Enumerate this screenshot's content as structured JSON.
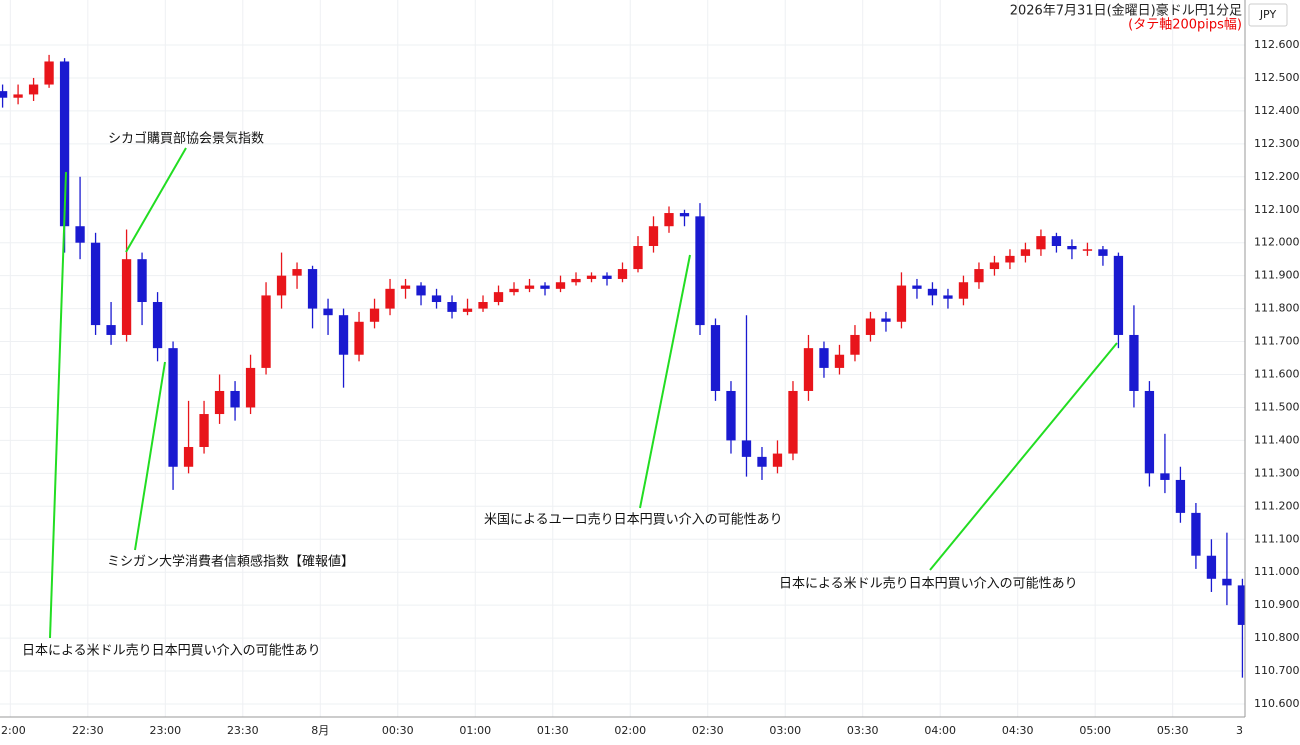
{
  "chart_data": {
    "type": "candlestick",
    "title": "2026年7月31日(金曜日)豪ドル円1分足",
    "subtitle": "(タテ軸200pips幅)",
    "currency": "JPY",
    "up_color": "#e8151b",
    "down_color": "#1a1ad0",
    "grid": true,
    "x": [
      -3,
      3,
      9,
      15,
      21,
      27,
      33,
      39,
      45,
      51,
      57,
      63,
      69,
      75,
      81,
      87,
      93,
      99,
      105,
      111,
      117,
      123,
      129,
      135,
      141,
      147,
      153,
      159,
      165,
      171,
      177,
      183,
      189,
      195,
      201,
      207,
      213,
      219,
      225,
      231,
      237,
      243,
      249,
      255,
      261,
      267,
      273,
      279,
      285,
      291,
      297,
      303,
      309,
      315,
      321,
      327,
      333,
      339,
      345,
      351,
      357,
      363,
      369,
      375,
      381,
      387,
      393,
      399,
      405,
      411,
      417,
      423,
      429,
      435,
      441,
      447,
      453,
      459,
      465,
      471,
      477
    ],
    "open": [
      112.46,
      112.44,
      112.45,
      112.48,
      112.55,
      112.05,
      112.0,
      111.75,
      111.72,
      111.95,
      111.82,
      111.68,
      111.32,
      111.38,
      111.48,
      111.55,
      111.5,
      111.62,
      111.84,
      111.9,
      111.92,
      111.8,
      111.78,
      111.66,
      111.76,
      111.8,
      111.86,
      111.87,
      111.84,
      111.82,
      111.79,
      111.8,
      111.82,
      111.85,
      111.86,
      111.87,
      111.86,
      111.88,
      111.89,
      111.9,
      111.89,
      111.92,
      111.99,
      112.05,
      112.09,
      112.08,
      111.75,
      111.55,
      111.4,
      111.35,
      111.32,
      111.36,
      111.55,
      111.68,
      111.62,
      111.66,
      111.72,
      111.77,
      111.76,
      111.87,
      111.86,
      111.84,
      111.83,
      111.88,
      111.92,
      111.94,
      111.96,
      111.98,
      112.02,
      111.99,
      111.98,
      111.98,
      111.96,
      111.72,
      111.55,
      111.3,
      111.28,
      111.18,
      111.05,
      110.98,
      110.96
    ],
    "high": [
      112.48,
      112.48,
      112.5,
      112.57,
      112.56,
      112.2,
      112.03,
      111.82,
      112.04,
      111.97,
      111.85,
      111.7,
      111.52,
      111.52,
      111.6,
      111.58,
      111.66,
      111.88,
      111.97,
      111.94,
      111.93,
      111.83,
      111.8,
      111.79,
      111.83,
      111.89,
      111.89,
      111.88,
      111.86,
      111.84,
      111.83,
      111.84,
      111.87,
      111.88,
      111.89,
      111.88,
      111.9,
      111.91,
      111.91,
      111.91,
      111.94,
      112.02,
      112.08,
      112.11,
      112.1,
      112.12,
      111.77,
      111.58,
      111.78,
      111.38,
      111.4,
      111.58,
      111.72,
      111.7,
      111.69,
      111.75,
      111.79,
      111.79,
      111.91,
      111.89,
      111.88,
      111.86,
      111.9,
      111.94,
      111.96,
      111.98,
      112.0,
      112.04,
      112.03,
      112.01,
      112.0,
      111.99,
      111.97,
      111.81,
      111.58,
      111.42,
      111.32,
      111.21,
      111.1,
      111.12,
      110.98
    ],
    "low": [
      112.41,
      112.42,
      112.43,
      112.47,
      111.97,
      111.95,
      111.72,
      111.69,
      111.7,
      111.75,
      111.64,
      111.25,
      111.3,
      111.36,
      111.45,
      111.46,
      111.48,
      111.6,
      111.8,
      111.86,
      111.74,
      111.72,
      111.56,
      111.64,
      111.74,
      111.78,
      111.83,
      111.81,
      111.8,
      111.77,
      111.78,
      111.79,
      111.81,
      111.84,
      111.85,
      111.84,
      111.85,
      111.87,
      111.88,
      111.87,
      111.88,
      111.91,
      111.97,
      112.03,
      112.05,
      111.72,
      111.52,
      111.36,
      111.29,
      111.28,
      111.3,
      111.34,
      111.52,
      111.59,
      111.6,
      111.64,
      111.7,
      111.73,
      111.74,
      111.83,
      111.81,
      111.8,
      111.81,
      111.86,
      111.9,
      111.92,
      111.94,
      111.96,
      111.97,
      111.95,
      111.96,
      111.93,
      111.68,
      111.5,
      111.26,
      111.24,
      111.15,
      111.01,
      110.94,
      110.9,
      110.68
    ],
    "close": [
      112.44,
      112.45,
      112.48,
      112.55,
      112.05,
      112.0,
      111.75,
      111.72,
      111.95,
      111.82,
      111.68,
      111.32,
      111.38,
      111.48,
      111.55,
      111.5,
      111.62,
      111.84,
      111.9,
      111.92,
      111.8,
      111.78,
      111.66,
      111.76,
      111.8,
      111.86,
      111.87,
      111.84,
      111.82,
      111.79,
      111.8,
      111.82,
      111.85,
      111.86,
      111.87,
      111.86,
      111.88,
      111.89,
      111.9,
      111.89,
      111.92,
      111.99,
      112.05,
      112.09,
      112.08,
      111.75,
      111.55,
      111.4,
      111.35,
      111.32,
      111.36,
      111.55,
      111.68,
      111.62,
      111.66,
      111.72,
      111.77,
      111.76,
      111.87,
      111.86,
      111.84,
      111.83,
      111.88,
      111.92,
      111.94,
      111.96,
      111.98,
      112.02,
      111.99,
      111.98,
      111.98,
      111.96,
      111.72,
      111.55,
      111.3,
      111.28,
      111.18,
      111.05,
      110.98,
      110.96,
      110.84
    ],
    "xlim": [
      -4,
      478
    ],
    "xticks": [
      {
        "value": 0,
        "label": "2:00"
      },
      {
        "value": 30,
        "label": "22:30"
      },
      {
        "value": 60,
        "label": "23:00"
      },
      {
        "value": 90,
        "label": "23:30"
      },
      {
        "value": 120,
        "label": "8月"
      },
      {
        "value": 150,
        "label": "00:30"
      },
      {
        "value": 180,
        "label": "01:00"
      },
      {
        "value": 210,
        "label": "01:30"
      },
      {
        "value": 240,
        "label": "02:00"
      },
      {
        "value": 270,
        "label": "02:30"
      },
      {
        "value": 300,
        "label": "03:00"
      },
      {
        "value": 330,
        "label": "03:30"
      },
      {
        "value": 360,
        "label": "04:00"
      },
      {
        "value": 390,
        "label": "04:30"
      },
      {
        "value": 420,
        "label": "05:00"
      },
      {
        "value": 450,
        "label": "05:30"
      },
      {
        "value": 478,
        "label": "3"
      }
    ],
    "ylim": [
      110.6,
      112.6
    ],
    "yticks": [
      {
        "value": 110.6,
        "label": "110.600"
      },
      {
        "value": 110.7,
        "label": "110.700"
      },
      {
        "value": 110.8,
        "label": "110.800"
      },
      {
        "value": 110.9,
        "label": "110.900"
      },
      {
        "value": 111.0,
        "label": "111.000"
      },
      {
        "value": 111.1,
        "label": "111.100"
      },
      {
        "value": 111.2,
        "label": "111.200"
      },
      {
        "value": 111.3,
        "label": "111.300"
      },
      {
        "value": 111.4,
        "label": "111.400"
      },
      {
        "value": 111.5,
        "label": "111.500"
      },
      {
        "value": 111.6,
        "label": "111.600"
      },
      {
        "value": 111.7,
        "label": "111.700"
      },
      {
        "value": 111.8,
        "label": "111.800"
      },
      {
        "value": 111.9,
        "label": "111.900"
      },
      {
        "value": 112.0,
        "label": "112.000"
      },
      {
        "value": 112.1,
        "label": "112.100"
      },
      {
        "value": 112.2,
        "label": "112.200"
      },
      {
        "value": 112.3,
        "label": "112.300"
      },
      {
        "value": 112.4,
        "label": "112.400"
      },
      {
        "value": 112.5,
        "label": "112.500"
      },
      {
        "value": 112.6,
        "label": "112.600"
      }
    ],
    "annotations": [
      "シカゴ購買部協会景気指数",
      "ミシガン大学消費者信頼感指数【確報値】",
      "日本による米ドル売り日本円買い介入の可能性あり",
      "米国によるユーロ売り日本円買い介入の可能性あり",
      "日本による米ドル売り日本円買い介入の可能性あり"
    ]
  }
}
